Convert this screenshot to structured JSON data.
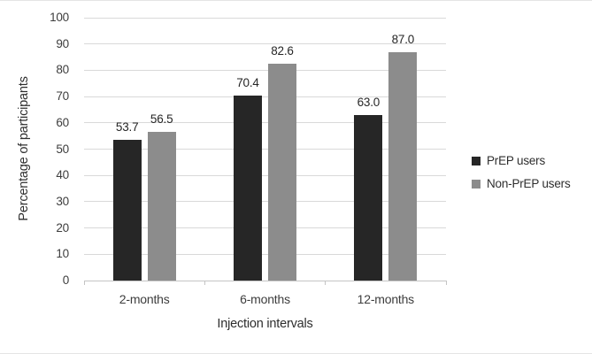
{
  "figure": {
    "background": "#ffffff",
    "edge_line_color": "#e4e4e4"
  },
  "chart_data": {
    "type": "bar",
    "title": "",
    "categories": [
      "2-months",
      "6-months",
      "12-months"
    ],
    "series": [
      {
        "name": "PrEP users",
        "color": "#262626",
        "values": [
          53.7,
          70.4,
          63.0
        ]
      },
      {
        "name": "Non-PrEP users",
        "color": "#8c8c8c",
        "values": [
          56.5,
          82.6,
          87.0
        ]
      }
    ],
    "value_labels": [
      [
        "53.7",
        "56.5"
      ],
      [
        "70.4",
        "82.6"
      ],
      [
        "63.0",
        "87.0"
      ]
    ],
    "xlabel": "Injection intervals",
    "ylabel": "Percentage of participants",
    "ylim": [
      0,
      100
    ],
    "ytick_step": 10,
    "ytick_labels": [
      "0",
      "10",
      "20",
      "30",
      "40",
      "50",
      "60",
      "70",
      "80",
      "90",
      "100"
    ],
    "grid": true,
    "legend_position": "right",
    "colors": {
      "gridline": "#d9d9d9",
      "axis_line": "#c4c4c4",
      "tick_text": "#3d3d3d",
      "value_text": "#262626"
    }
  }
}
